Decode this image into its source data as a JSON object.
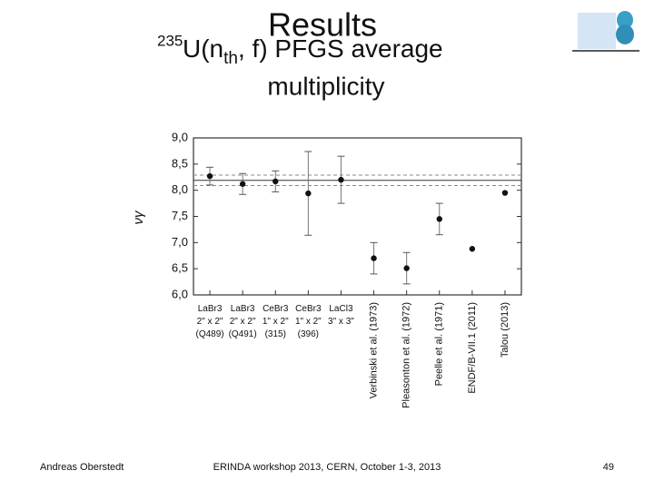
{
  "slide": {
    "title": "Results",
    "subtitle_mass": "235",
    "subtitle_start": "U(n",
    "subtitle_sub": "th",
    "subtitle_end": ", f) PFGS average",
    "subtitle_line2": "multiplicity",
    "footer_left": "Andreas Oberstedt",
    "footer_center": "ERINDA workshop 2013, CERN, October 1-3, 2013",
    "page_number": 49
  },
  "chart_data": {
    "type": "errorbar",
    "y_label": "νγ",
    "categories": [
      "LaBr3\n2\" x 2\"\n(Q489)",
      "LaBr3\n2\" x 2\"\n(Q491)",
      "CeBr3\n1\" x 2\"\n(315)",
      "CeBr3\n1\" x 2\"\n(396)",
      "LaCl3\n3\" x 3\"",
      "Verbinski et al. (1973)",
      "Pleasonton et al. (1972)",
      "Peelle et al. (1971)",
      "ENDF/B-VII.1 (2011)",
      "Talou (2013)"
    ],
    "rotated_labels": [
      false,
      false,
      false,
      false,
      false,
      true,
      true,
      true,
      true,
      true
    ],
    "values": [
      8.27,
      8.12,
      8.17,
      7.94,
      8.2,
      6.7,
      6.51,
      7.45,
      6.88,
      7.95
    ],
    "errors": [
      0.17,
      0.2,
      0.2,
      0.8,
      0.45,
      0.3,
      0.3,
      0.3,
      null,
      null
    ],
    "color": "#111111",
    "hlines": [
      {
        "value": 8.19,
        "style": "solid",
        "color": "#333333"
      },
      {
        "value": 8.29,
        "style": "dashed",
        "color": "#888888"
      },
      {
        "value": 8.09,
        "style": "dashed",
        "color": "#888888"
      }
    ],
    "ylim": [
      6.0,
      9.0
    ],
    "yticks": [
      {
        "value": 6.0,
        "label": "6,0"
      },
      {
        "value": 6.5,
        "label": "6,5"
      },
      {
        "value": 7.0,
        "label": "7,0"
      },
      {
        "value": 7.5,
        "label": "7,5"
      },
      {
        "value": 8.0,
        "label": "8,0"
      },
      {
        "value": 8.5,
        "label": "8,5"
      },
      {
        "value": 9.0,
        "label": "9,0"
      }
    ]
  }
}
